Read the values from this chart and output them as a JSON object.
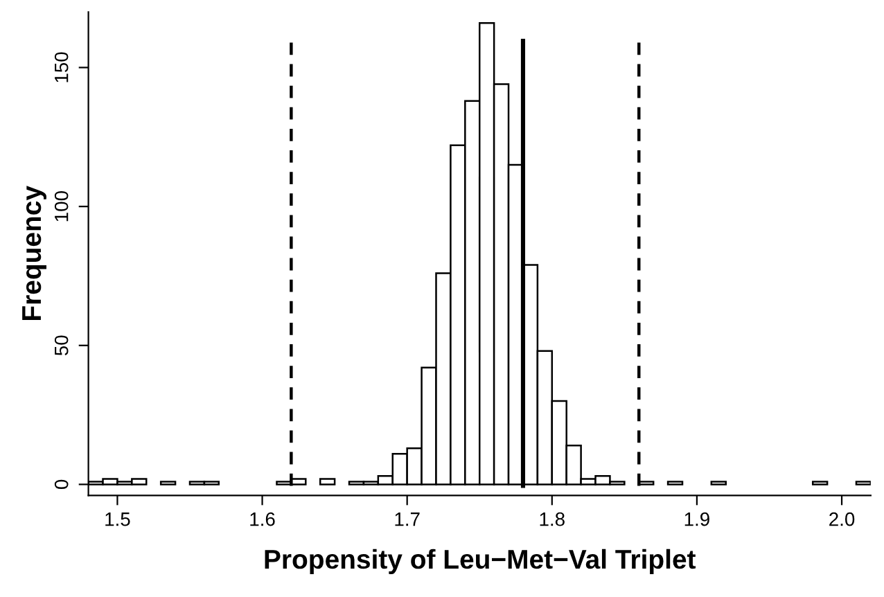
{
  "chart_data": {
    "type": "histogram",
    "xlabel": "Propensity of Leu−Met−Val Triplet",
    "ylabel": "Frequency",
    "bins": [
      1.48,
      1.49,
      1.5,
      1.51,
      1.52,
      1.53,
      1.54,
      1.55,
      1.56,
      1.57,
      1.58,
      1.59,
      1.6,
      1.61,
      1.62,
      1.63,
      1.64,
      1.65,
      1.66,
      1.67,
      1.68,
      1.69,
      1.7,
      1.71,
      1.72,
      1.73,
      1.74,
      1.75,
      1.76,
      1.77,
      1.78,
      1.79,
      1.8,
      1.81,
      1.82,
      1.83,
      1.84,
      1.85,
      1.86,
      1.87,
      1.88,
      1.89,
      1.9,
      1.91,
      1.92,
      1.93,
      1.94,
      1.95,
      1.96,
      1.97,
      1.98,
      1.99,
      2.0,
      2.01,
      2.02
    ],
    "values": [
      1,
      2,
      1,
      2,
      0,
      1,
      0,
      1,
      1,
      0,
      0,
      0,
      0,
      1,
      2,
      0,
      2,
      0,
      1,
      1,
      3,
      11,
      13,
      42,
      76,
      122,
      138,
      166,
      144,
      115,
      79,
      48,
      30,
      14,
      2,
      3,
      1,
      0,
      1,
      0,
      1,
      0,
      0,
      1,
      0,
      0,
      0,
      0,
      0,
      0,
      1,
      0,
      0,
      1
    ],
    "color": "#ffffff",
    "xlim": [
      1.48,
      2.02
    ],
    "ylim": [
      -4,
      170
    ],
    "xticks": [
      1.5,
      1.6,
      1.7,
      1.8,
      1.9,
      {
        "value": 2.0,
        "label": "2.0"
      }
    ],
    "yticks": [
      0,
      50,
      100,
      150
    ],
    "ref_lines": [
      {
        "axis": "x",
        "value": 1.62,
        "line_style": "dashed",
        "color": "#000000"
      },
      {
        "axis": "x",
        "value": 1.78,
        "line_style": "solid",
        "color": "#000000"
      },
      {
        "axis": "x",
        "value": 1.86,
        "line_style": "dashed",
        "color": "#000000"
      }
    ],
    "grid": false
  }
}
